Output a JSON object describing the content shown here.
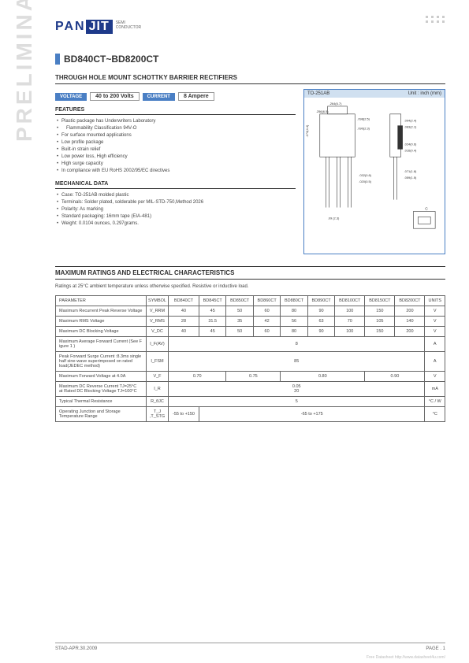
{
  "logo": {
    "pan": "PAN",
    "jit": "JIT",
    "sub1": "SEMI",
    "sub2": "CONDUCTOR"
  },
  "title": "BD840CT~BD8200CT",
  "subtitle": "THROUGH HOLE MOUNT SCHOTTKY BARRIER RECTIFIERS",
  "specs": {
    "voltage_label": "VOLTAGE",
    "voltage_val": "40 to 200  Volts",
    "current_label": "CURRENT",
    "current_val": "8 Ampere"
  },
  "pkg": {
    "name": "TO-251AB",
    "unit": "Unit : inch (mm)"
  },
  "sections": {
    "features": "FEATURES",
    "mech": "MECHANICAL DATA",
    "max": "MAXIMUM RATINGS AND ELECTRICAL CHARACTERISTICS"
  },
  "features": [
    "Plastic package has Underwriters Laboratory",
    "Flammability Classification 94V-O",
    "For surface mounted applications",
    "Low profile package",
    "Built-in strain relief",
    "Low power loss, High efficiency",
    "High surge capacity",
    "In compliance with EU RoHS 2002/95/EC directives"
  ],
  "mech": [
    "Case: TO-251AB molded plastic",
    "Terminals: Solder plated, solderable per MIL-STD-750,Method 2026",
    "Polarity:  As marking",
    "Standard packaging: 16mm tape (EIA-481)",
    "Weight: 0.0104 ounces, 0.297grams."
  ],
  "max_note": "Ratings at 25°C ambient temperature unless otherwise specified. Resistive or inductive load.",
  "table": {
    "head": [
      "PARAMETER",
      "SYMBOL",
      "BD840CT",
      "BD845CT",
      "BD850CT",
      "BD860CT",
      "BD880CT",
      "BD890CT",
      "BD8100CT",
      "BD8150CT",
      "BD8200CT",
      "UNITS"
    ],
    "rows": [
      {
        "p": "Maximum Recurrent Peak Reverse Voltage",
        "s": "V_RRM",
        "v": [
          "40",
          "45",
          "50",
          "60",
          "80",
          "90",
          "100",
          "150",
          "200"
        ],
        "u": "V"
      },
      {
        "p": "Maximum RMS Voltage",
        "s": "V_RMS",
        "v": [
          "28",
          "31.5",
          "35",
          "42",
          "56",
          "63",
          "70",
          "105",
          "140"
        ],
        "u": "V"
      },
      {
        "p": "Maximum DC Blocking Voltage",
        "s": "V_DC",
        "v": [
          "40",
          "45",
          "50",
          "60",
          "80",
          "90",
          "100",
          "150",
          "200"
        ],
        "u": "V"
      }
    ],
    "rows_span": [
      {
        "p": "Maximum Average Forward  Current   (See  F igure  1 )",
        "s": "I_F(AV)",
        "span": "8",
        "u": "A"
      },
      {
        "p": "Peak Forward Surge Current :8.3ms single half sine-wave superimposed on rated load(JEDEC method)",
        "s": "I_FSM",
        "span": "85",
        "u": "A"
      }
    ],
    "row_vf": {
      "p": "Maximum Forward Voltage at  4.0A",
      "s": "V_F",
      "v": [
        "0.70",
        "0.75",
        "0.80",
        "0.90"
      ],
      "u": "V"
    },
    "row_ir": {
      "p": "Maximum DC Reverse Current TJ=25°C\nat Rated DC Blocking Voltage TJ=100°C",
      "s": "I_R",
      "v": [
        "0.05",
        "20"
      ],
      "u": "mA"
    },
    "row_rth": {
      "p": "Typical Thermal Resistance",
      "s": "R_θJC",
      "span": "5",
      "u": "°C / W"
    },
    "row_temp": {
      "p": "Operating Junction and Storage Temperature Range",
      "s": "T_J ,T_STG",
      "v1": "-55 to +150",
      "v2": "-65 to +175",
      "u": "°C"
    }
  },
  "sidebar": "PRELIMINARY",
  "footer": {
    "left": "STAD-APR.30.2009",
    "right": "PAGE .  1"
  },
  "watermark": "Free Datasheet http://www.datasheet4u.com/",
  "colors": {
    "brand": "#1e3a8a",
    "accent": "#4a7fc4",
    "lightblue": "#d0e0f0",
    "gray": "#dddddd",
    "border": "#666666"
  }
}
